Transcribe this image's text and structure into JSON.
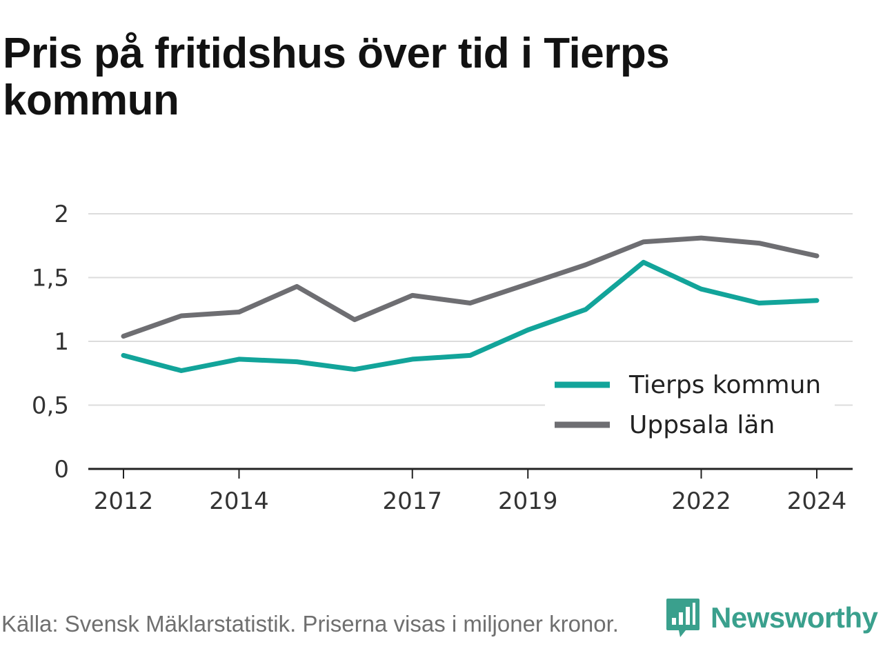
{
  "title": "Pris på fritidshus över tid i Tierps kommun",
  "footer": "Källa: Svensk Mäklarstatistik. Priserna visas i miljoner kronor.",
  "logo": {
    "name": "Newsworthy",
    "icon": "newsworthy-chart-bubble-icon",
    "color": "#3aa08d"
  },
  "chart_data": {
    "type": "line",
    "x": [
      2012,
      2013,
      2014,
      2015,
      2016,
      2017,
      2018,
      2019,
      2020,
      2021,
      2022,
      2023,
      2024
    ],
    "xticks": [
      "2012",
      "2014",
      "2017",
      "2019",
      "2022",
      "2024"
    ],
    "xtick_values": [
      2012,
      2014,
      2017,
      2019,
      2022,
      2024
    ],
    "yticks": [
      "0",
      "0,5",
      "1",
      "1,5",
      "2"
    ],
    "ytick_values": [
      0,
      0.5,
      1,
      1.5,
      2
    ],
    "ylim": [
      0,
      2
    ],
    "grid": true,
    "legend_position": "bottom-right",
    "series": [
      {
        "name": "Tierps kommun",
        "color": "#12a49a",
        "values": [
          0.89,
          0.77,
          0.86,
          0.84,
          0.78,
          0.86,
          0.89,
          1.09,
          1.25,
          1.62,
          1.41,
          1.3,
          1.32
        ]
      },
      {
        "name": "Uppsala län",
        "color": "#6e6e72",
        "values": [
          1.04,
          1.2,
          1.23,
          1.43,
          1.17,
          1.36,
          1.3,
          1.45,
          1.6,
          1.78,
          1.81,
          1.77,
          1.67
        ]
      }
    ]
  }
}
